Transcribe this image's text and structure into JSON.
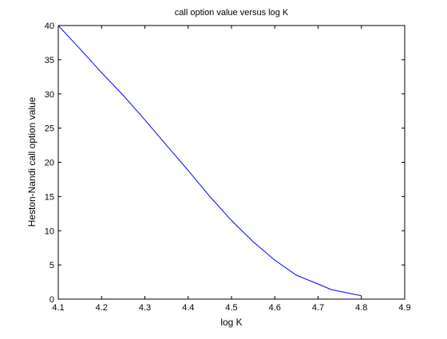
{
  "chart_data": {
    "type": "line",
    "title": "call option value versus log K",
    "xlabel": "log K",
    "ylabel": "Heston-Nandi call option value",
    "xlim": [
      4.1,
      4.9
    ],
    "ylim": [
      0,
      40
    ],
    "xticks": [
      4.1,
      4.2,
      4.3,
      4.4,
      4.5,
      4.6,
      4.7,
      4.8,
      4.9
    ],
    "xtick_labels": [
      "4.1",
      "4.2",
      "4.3",
      "4.4",
      "4.5",
      "4.6",
      "4.7",
      "4.8",
      "4.9"
    ],
    "yticks": [
      0,
      5,
      10,
      15,
      20,
      25,
      30,
      35,
      40
    ],
    "ytick_labels": [
      "0",
      "5",
      "10",
      "15",
      "20",
      "25",
      "30",
      "35",
      "40"
    ],
    "grid": false,
    "line_color": "#0000ff",
    "series": [
      {
        "x": [
          4.1,
          4.15,
          4.2,
          4.25,
          4.3,
          4.35,
          4.4,
          4.45,
          4.5,
          4.55,
          4.6,
          4.65,
          4.7,
          4.73,
          4.76,
          4.8
        ],
        "y": [
          40.0,
          36.6,
          33.1,
          29.8,
          26.2,
          22.5,
          18.8,
          15.0,
          11.5,
          8.4,
          5.7,
          3.5,
          2.2,
          1.4,
          1.0,
          0.5
        ]
      }
    ]
  }
}
